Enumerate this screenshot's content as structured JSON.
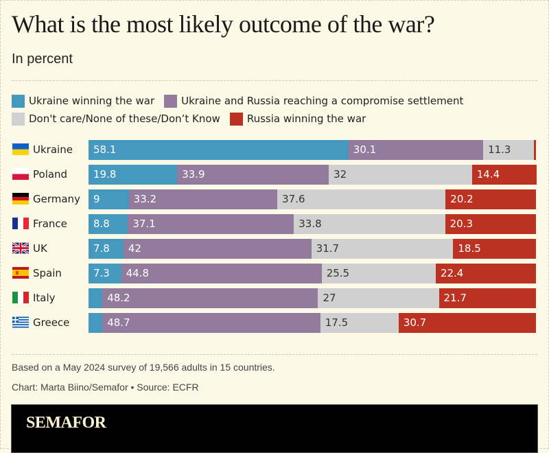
{
  "chart_data": {
    "type": "bar",
    "orientation": "horizontal",
    "stacked": true,
    "title": "What is the most likely outcome of the war?",
    "subtitle": "In percent",
    "xlabel": "",
    "ylabel": "",
    "xlim": [
      0,
      100
    ],
    "categories": [
      "Ukraine",
      "Poland",
      "Germany",
      "France",
      "UK",
      "Spain",
      "Italy",
      "Greece"
    ],
    "flags": [
      "ukraine-flag",
      "poland-flag",
      "germany-flag",
      "france-flag",
      "uk-flag",
      "spain-flag",
      "italy-flag",
      "greece-flag"
    ],
    "series": [
      {
        "name": "Ukraine winning the war",
        "color": "#4599be",
        "label_color": "#ffffff",
        "values": [
          58.1,
          19.8,
          9,
          8.8,
          7.8,
          7.3,
          3.1,
          3.1
        ],
        "labels": [
          "58.1",
          "19.8",
          "9",
          "8.8",
          "7.8",
          "7.3",
          "",
          ""
        ]
      },
      {
        "name": "Ukraine and Russia reaching a compromise settlement",
        "color": "#937b9e",
        "label_color": "#ffffff",
        "values": [
          30.1,
          33.9,
          33.2,
          37.1,
          42,
          44.8,
          48.2,
          48.7
        ],
        "labels": [
          "30.1",
          "33.9",
          "33.2",
          "37.1",
          "42",
          "44.8",
          "48.2",
          "48.7"
        ]
      },
      {
        "name": "Don't care/None of these/Don’t Know",
        "color": "#d0d0d0",
        "label_color": "#333333",
        "values": [
          11.3,
          32,
          37.6,
          33.8,
          31.7,
          25.5,
          27,
          17.5
        ],
        "labels": [
          "11.3",
          "32",
          "37.6",
          "33.8",
          "31.7",
          "25.5",
          "27",
          "17.5"
        ]
      },
      {
        "name": "Russia winning the war",
        "color": "#bb3222",
        "label_color": "#ffffff",
        "values": [
          0.5,
          14.4,
          20.2,
          20.3,
          18.5,
          22.4,
          21.7,
          30.7
        ],
        "labels": [
          "",
          "14.4",
          "20.2",
          "20.3",
          "18.5",
          "22.4",
          "21.7",
          "30.7"
        ]
      }
    ],
    "legend": "top",
    "grid": false
  },
  "footer": {
    "note": "Based on a May 2024 survey of 19,566 adults in 15 countries.",
    "credit": "Chart: Marta Biino/Semafor • Source: ECFR",
    "brand": "SEMAFOR"
  }
}
